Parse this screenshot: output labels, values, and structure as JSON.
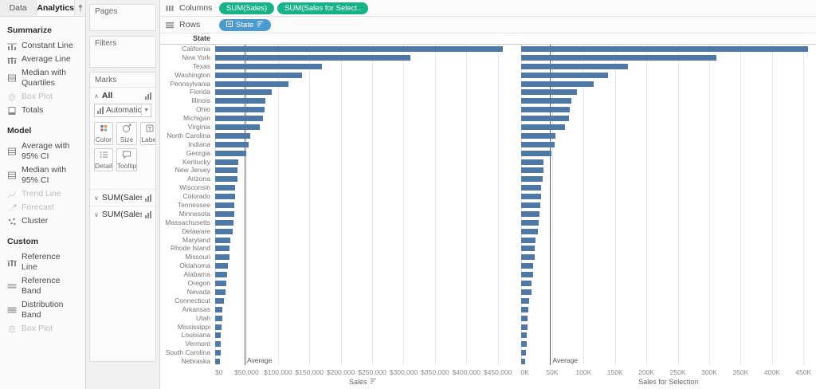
{
  "left_pane": {
    "tabs": [
      {
        "label": "Data",
        "active": false
      },
      {
        "label": "Analytics",
        "active": true
      }
    ],
    "sections": [
      {
        "title": "Summarize",
        "items": [
          {
            "label": "Constant Line",
            "icon": "constant-line",
            "disabled": false
          },
          {
            "label": "Average Line",
            "icon": "average-line",
            "disabled": false
          },
          {
            "label": "Median with Quartiles",
            "icon": "median-quartiles",
            "disabled": false
          },
          {
            "label": "Box Plot",
            "icon": "box-plot",
            "disabled": true
          },
          {
            "label": "Totals",
            "icon": "totals",
            "disabled": false
          }
        ]
      },
      {
        "title": "Model",
        "items": [
          {
            "label": "Average with 95% CI",
            "icon": "ci-band",
            "disabled": false
          },
          {
            "label": "Median with 95% CI",
            "icon": "ci-band",
            "disabled": false
          },
          {
            "label": "Trend Line",
            "icon": "trend-line",
            "disabled": true
          },
          {
            "label": "Forecast",
            "icon": "forecast",
            "disabled": true
          },
          {
            "label": "Cluster",
            "icon": "cluster",
            "disabled": false
          }
        ]
      },
      {
        "title": "Custom",
        "items": [
          {
            "label": "Reference Line",
            "icon": "reference-line",
            "disabled": false
          },
          {
            "label": "Reference Band",
            "icon": "reference-band",
            "disabled": false
          },
          {
            "label": "Distribution Band",
            "icon": "distribution-band",
            "disabled": false
          },
          {
            "label": "Box Plot",
            "icon": "box-plot",
            "disabled": true
          }
        ]
      }
    ]
  },
  "shelf_column": {
    "pages_label": "Pages",
    "filters_label": "Filters",
    "marks_label": "Marks",
    "marks_all_label": "All",
    "mark_type": "Automatic",
    "mark_buttons": [
      {
        "label": "Color",
        "icon": "color"
      },
      {
        "label": "Size",
        "icon": "size"
      },
      {
        "label": "Label",
        "icon": "label"
      },
      {
        "label": "Detail",
        "icon": "detail"
      },
      {
        "label": "Tooltip",
        "icon": "tooltip"
      }
    ],
    "mark_cards": [
      {
        "label": "SUM(Sales)"
      },
      {
        "label": "SUM(Sales ..."
      }
    ]
  },
  "shelves": {
    "columns_label": "Columns",
    "rows_label": "Rows",
    "column_pills": [
      {
        "label": "SUM(Sales)"
      },
      {
        "label": "SUM(Sales for Select.."
      }
    ],
    "row_pills": [
      {
        "label": "State",
        "sorted": true
      }
    ]
  },
  "colors": {
    "bar": "#4e79a7",
    "measure_pill": "#17b388",
    "dimension_pill": "#4b9bd1",
    "gridline": "#e9e9e9",
    "reference_line": "#5f5f5f"
  },
  "chart_data": {
    "type": "bar",
    "orientation": "horizontal",
    "sort": "descending by Sales",
    "row_header": "State",
    "categories": [
      "California",
      "New York",
      "Texas",
      "Washington",
      "Pennsylvania",
      "Florida",
      "Illinois",
      "Ohio",
      "Michigan",
      "Virginia",
      "North Carolina",
      "Indiana",
      "Georgia",
      "Kentucky",
      "New Jersey",
      "Arizona",
      "Wisconsin",
      "Colorado",
      "Tennessee",
      "Minnesota",
      "Massachusetts",
      "Delaware",
      "Maryland",
      "Rhode Island",
      "Missouri",
      "Oklahoma",
      "Alabama",
      "Oregon",
      "Nevada",
      "Connecticut",
      "Arkansas",
      "Utah",
      "Mississippi",
      "Louisiana",
      "Vermont",
      "South Carolina",
      "Nebraska"
    ],
    "series": [
      {
        "name": "SUM(Sales)",
        "axis_title": "Sales",
        "sort_icon": true,
        "axis_max": 470000,
        "ticks": [
          {
            "label": "$0",
            "value": 0
          },
          {
            "label": "$50,000",
            "value": 50000
          },
          {
            "label": "$100,000",
            "value": 100000
          },
          {
            "label": "$150,000",
            "value": 150000
          },
          {
            "label": "$200,000",
            "value": 200000
          },
          {
            "label": "$250,000",
            "value": 250000
          },
          {
            "label": "$300,000",
            "value": 300000
          },
          {
            "label": "$350,000",
            "value": 350000
          },
          {
            "label": "$400,000",
            "value": 400000
          },
          {
            "label": "$450,000",
            "value": 450000
          }
        ],
        "reference_line": {
          "label": "Average",
          "value": 46894
        },
        "values": [
          457688,
          310876,
          170188,
          138641,
          116512,
          89474,
          80166,
          78258,
          76270,
          70637,
          55603,
          53555,
          49096,
          36592,
          35764,
          35282,
          32115,
          32108,
          30662,
          29863,
          28634,
          27451,
          23706,
          22628,
          22205,
          19683,
          19511,
          17431,
          16729,
          13384,
          11678,
          11220,
          10771,
          9217,
          8929,
          8482,
          7465
        ]
      },
      {
        "name": "SUM(Sales for Selection)",
        "axis_title": "Sales for Selection",
        "sort_icon": false,
        "axis_max": 470000,
        "ticks": [
          {
            "label": "0K",
            "value": 0
          },
          {
            "label": "50K",
            "value": 50000
          },
          {
            "label": "100K",
            "value": 100000
          },
          {
            "label": "150K",
            "value": 150000
          },
          {
            "label": "200K",
            "value": 200000
          },
          {
            "label": "250K",
            "value": 250000
          },
          {
            "label": "300K",
            "value": 300000
          },
          {
            "label": "350K",
            "value": 350000
          },
          {
            "label": "400K",
            "value": 400000
          },
          {
            "label": "450K",
            "value": 450000
          }
        ],
        "reference_line": {
          "label": "Average",
          "value": 46894
        },
        "values": [
          457688,
          310876,
          170188,
          138641,
          116512,
          89474,
          80166,
          78258,
          76270,
          70637,
          55603,
          53555,
          49096,
          36592,
          35764,
          35282,
          32115,
          32108,
          30662,
          29863,
          28634,
          27451,
          23706,
          22628,
          22205,
          19683,
          19511,
          17431,
          16729,
          13384,
          11678,
          11220,
          10771,
          9217,
          8929,
          8482,
          7465
        ]
      }
    ]
  }
}
